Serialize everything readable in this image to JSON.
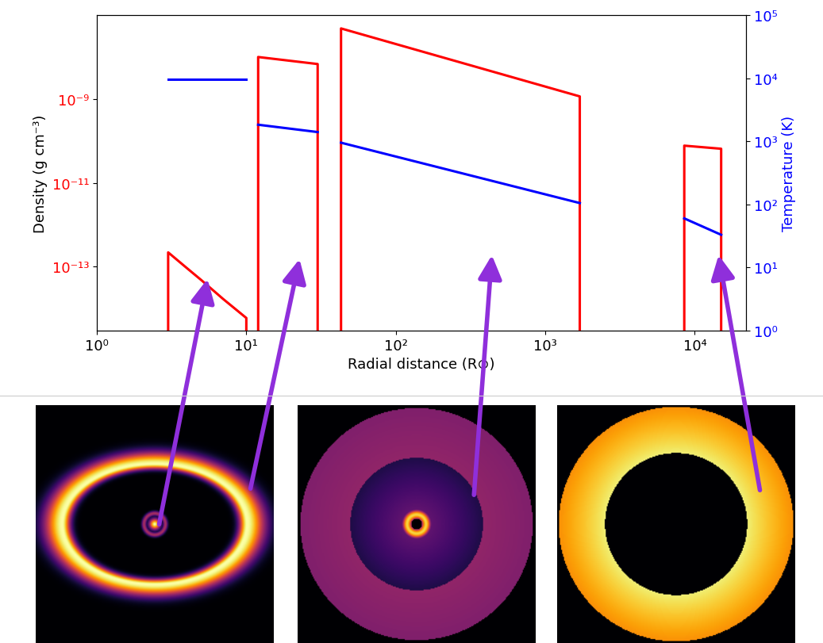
{
  "chart_data": {
    "type": "line",
    "log": true,
    "grid": false,
    "xlabel": "Radial distance (R⊙)",
    "ylabel": "Density (g cm⁻³)",
    "y2label": "Temperature (K)",
    "xlim": [
      1,
      22000
    ],
    "xticks": [
      {
        "value": 1,
        "label": "10⁰"
      },
      {
        "value": 10,
        "label": "10¹"
      },
      {
        "value": 100,
        "label": "10²"
      },
      {
        "value": 1000,
        "label": "10³"
      },
      {
        "value": 10000,
        "label": "10⁴"
      }
    ],
    "ylim": [
      3e-15,
      1e-07
    ],
    "yticks": [
      {
        "value": 1e-13,
        "label": "10⁻¹³"
      },
      {
        "value": 1e-11,
        "label": "10⁻¹¹"
      },
      {
        "value": 1e-09,
        "label": "10⁻⁹"
      }
    ],
    "y2lim": [
      1,
      100000
    ],
    "y2ticks": [
      {
        "value": 1,
        "label": "10⁰"
      },
      {
        "value": 10,
        "label": "10¹"
      },
      {
        "value": 100,
        "label": "10²"
      },
      {
        "value": 1000,
        "label": "10³"
      },
      {
        "value": 10000,
        "label": "10⁴"
      },
      {
        "value": 100000,
        "label": "10⁵"
      }
    ],
    "series": [
      {
        "type": "outline",
        "color": "red",
        "axis": "y",
        "x": [
          3,
          4,
          5,
          7,
          10
        ],
        "values": [
          2.2e-13,
          9.3e-14,
          4.8e-14,
          1.7e-14,
          6e-15
        ]
      },
      {
        "type": "outline",
        "color": "red",
        "axis": "y",
        "x": [
          12,
          30
        ],
        "values": [
          1e-08,
          6.8e-09
        ]
      },
      {
        "type": "outline",
        "color": "red",
        "axis": "y",
        "x": [
          43,
          1700
        ],
        "values": [
          4.8e-08,
          1.15e-09
        ]
      },
      {
        "type": "outline",
        "color": "red",
        "axis": "y",
        "x": [
          8500,
          15000
        ],
        "values": [
          7.7e-11,
          6.5e-11
        ]
      },
      {
        "type": "line",
        "color": "blue",
        "axis": "y2",
        "x": [
          3,
          10
        ],
        "values": [
          9500,
          9500
        ]
      },
      {
        "type": "line",
        "color": "blue",
        "axis": "y2",
        "x": [
          12,
          30
        ],
        "values": [
          1830,
          1400
        ]
      },
      {
        "type": "line",
        "color": "blue",
        "axis": "y2",
        "x": [
          43,
          1700
        ],
        "values": [
          950,
          105
        ]
      },
      {
        "type": "line",
        "color": "blue",
        "axis": "y2",
        "x": [
          8500,
          15000
        ],
        "values": [
          60,
          33
        ]
      }
    ]
  }
}
